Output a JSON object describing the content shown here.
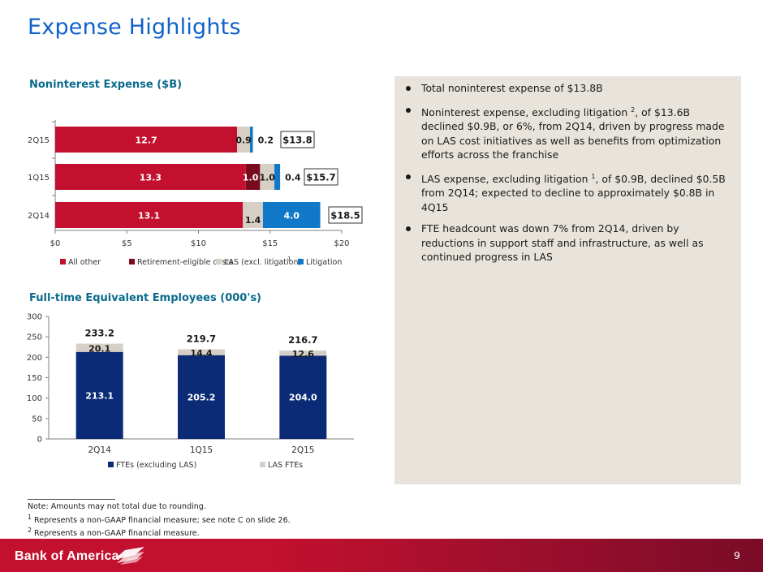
{
  "page": {
    "title": "Expense Highlights",
    "page_number": "9"
  },
  "colors": {
    "all_other": "#c3102e",
    "retirement": "#7a0b1e",
    "las": "#d6cfc5",
    "litigation": "#1078c8",
    "fte": "#0b2b77",
    "las_fte": "#d6cfc5",
    "title_blue": "#0f62c9",
    "chart_title_teal": "#0a6b8c"
  },
  "chart_data": [
    {
      "type": "bar",
      "orientation": "horizontal",
      "stacked": true,
      "title": "Noninterest Expense ($B)",
      "categories": [
        "2Q15",
        "1Q15",
        "2Q14"
      ],
      "series": [
        {
          "name": "All other",
          "values": [
            12.7,
            13.3,
            13.1
          ],
          "labels": [
            "12.7",
            "13.3",
            "13.1"
          ]
        },
        {
          "name": "Retirement-eligible costs",
          "values": [
            0,
            1.0,
            0
          ],
          "labels": [
            "",
            "1.0",
            ""
          ]
        },
        {
          "name": "LAS (excl. litigation)",
          "values": [
            0.9,
            1.0,
            1.4
          ],
          "labels": [
            "0.9",
            "1.0",
            "1.4"
          ]
        },
        {
          "name": "Litigation",
          "values": [
            0.2,
            0.4,
            4.0
          ],
          "labels": [
            "0.2",
            "0.4",
            "4.0"
          ]
        }
      ],
      "totals": [
        "$13.8",
        "$15.7",
        "$18.5"
      ],
      "x_ticks": [
        "$0",
        "$5",
        "$10",
        "$15",
        "$20"
      ],
      "xlim": [
        0,
        20
      ],
      "legend_position": "bottom",
      "legend_superscript": "1"
    },
    {
      "type": "bar",
      "orientation": "vertical",
      "stacked": true,
      "title": "Full-time Equivalent Employees (000's)",
      "categories": [
        "2Q14",
        "1Q15",
        "2Q15"
      ],
      "series": [
        {
          "name": "FTEs (excluding LAS)",
          "values": [
            213.1,
            205.2,
            204.0
          ],
          "labels": [
            "213.1",
            "205.2",
            "204.0"
          ]
        },
        {
          "name": "LAS FTEs",
          "values": [
            20.1,
            14.4,
            12.6
          ],
          "labels": [
            "20.1",
            "14.4",
            "12.6"
          ]
        }
      ],
      "totals": [
        "233.2",
        "219.7",
        "216.7"
      ],
      "y_ticks": [
        "0",
        "50",
        "100",
        "150",
        "200",
        "250",
        "300"
      ],
      "ylim": [
        0,
        300
      ],
      "legend_position": "bottom"
    }
  ],
  "bullets": [
    {
      "text": "Total noninterest expense of $13.8B"
    },
    {
      "before": "Noninterest expense, excluding litigation ",
      "sup": "2",
      "after": ", of $13.6B declined $0.9B, or 6%, from 2Q14, driven by progress made on LAS cost initiatives as well as benefits from optimization efforts across the franchise"
    },
    {
      "before": "LAS expense, excluding litigation ",
      "sup": "1",
      "after": ", of $0.9B, declined $0.5B from 2Q14; expected to decline to approximately $0.8B in 4Q15"
    },
    {
      "text": "FTE headcount was down 7% from 2Q14, driven by reductions in support staff and infrastructure, as well as continued progress in LAS"
    }
  ],
  "footnotes": {
    "note": "Note: Amounts may not total due to rounding.",
    "fn1_mark": "1",
    "fn1": " Represents a non-GAAP financial measure; see note C on slide 26.",
    "fn2_mark": "2",
    "fn2": " Represents a non-GAAP financial measure."
  },
  "footer": {
    "brand": "Bank of America"
  }
}
